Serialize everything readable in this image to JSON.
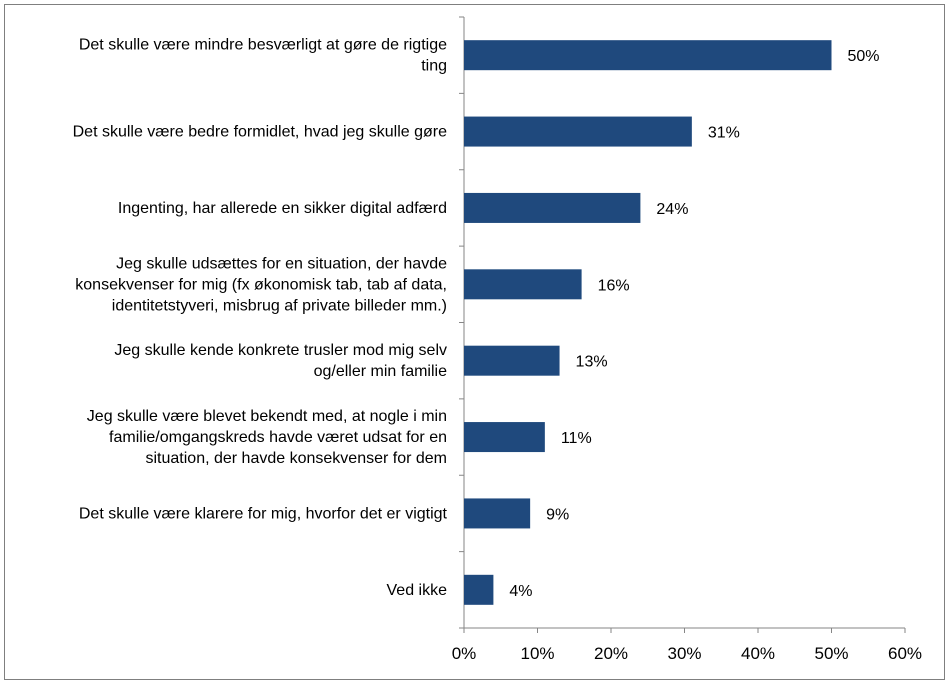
{
  "chart_data": {
    "type": "bar",
    "orientation": "horizontal",
    "categories": [
      [
        "Det skulle være mindre besværligt at gøre de rigtige",
        "ting"
      ],
      [
        "Det skulle være bedre formidlet, hvad jeg skulle gøre"
      ],
      [
        "Ingenting, har allerede en sikker digital adfærd"
      ],
      [
        "Jeg skulle udsættes for en situation, der havde",
        "konsekvenser for mig (fx økonomisk tab, tab af data,",
        "identitetstyveri, misbrug af private billeder mm.)"
      ],
      [
        "Jeg skulle kende konkrete trusler mod mig selv",
        "og/eller min familie"
      ],
      [
        "Jeg skulle være blevet bekendt med, at nogle i min",
        "familie/omgangskreds havde været udsat for en",
        "situation, der havde konsekvenser for dem"
      ],
      [
        "Det skulle være klarere for mig, hvorfor det er vigtigt"
      ],
      [
        "Ved ikke"
      ]
    ],
    "values": [
      50,
      31,
      24,
      16,
      13,
      11,
      9,
      4
    ],
    "data_labels": [
      "50%",
      "31%",
      "24%",
      "16%",
      "13%",
      "11%",
      "9%",
      "4%"
    ],
    "xlim": [
      0,
      60
    ],
    "x_ticks": [
      "0%",
      "10%",
      "20%",
      "30%",
      "40%",
      "50%",
      "60%"
    ],
    "bar_color": "#1f497d",
    "grid": false,
    "legend": "none"
  }
}
